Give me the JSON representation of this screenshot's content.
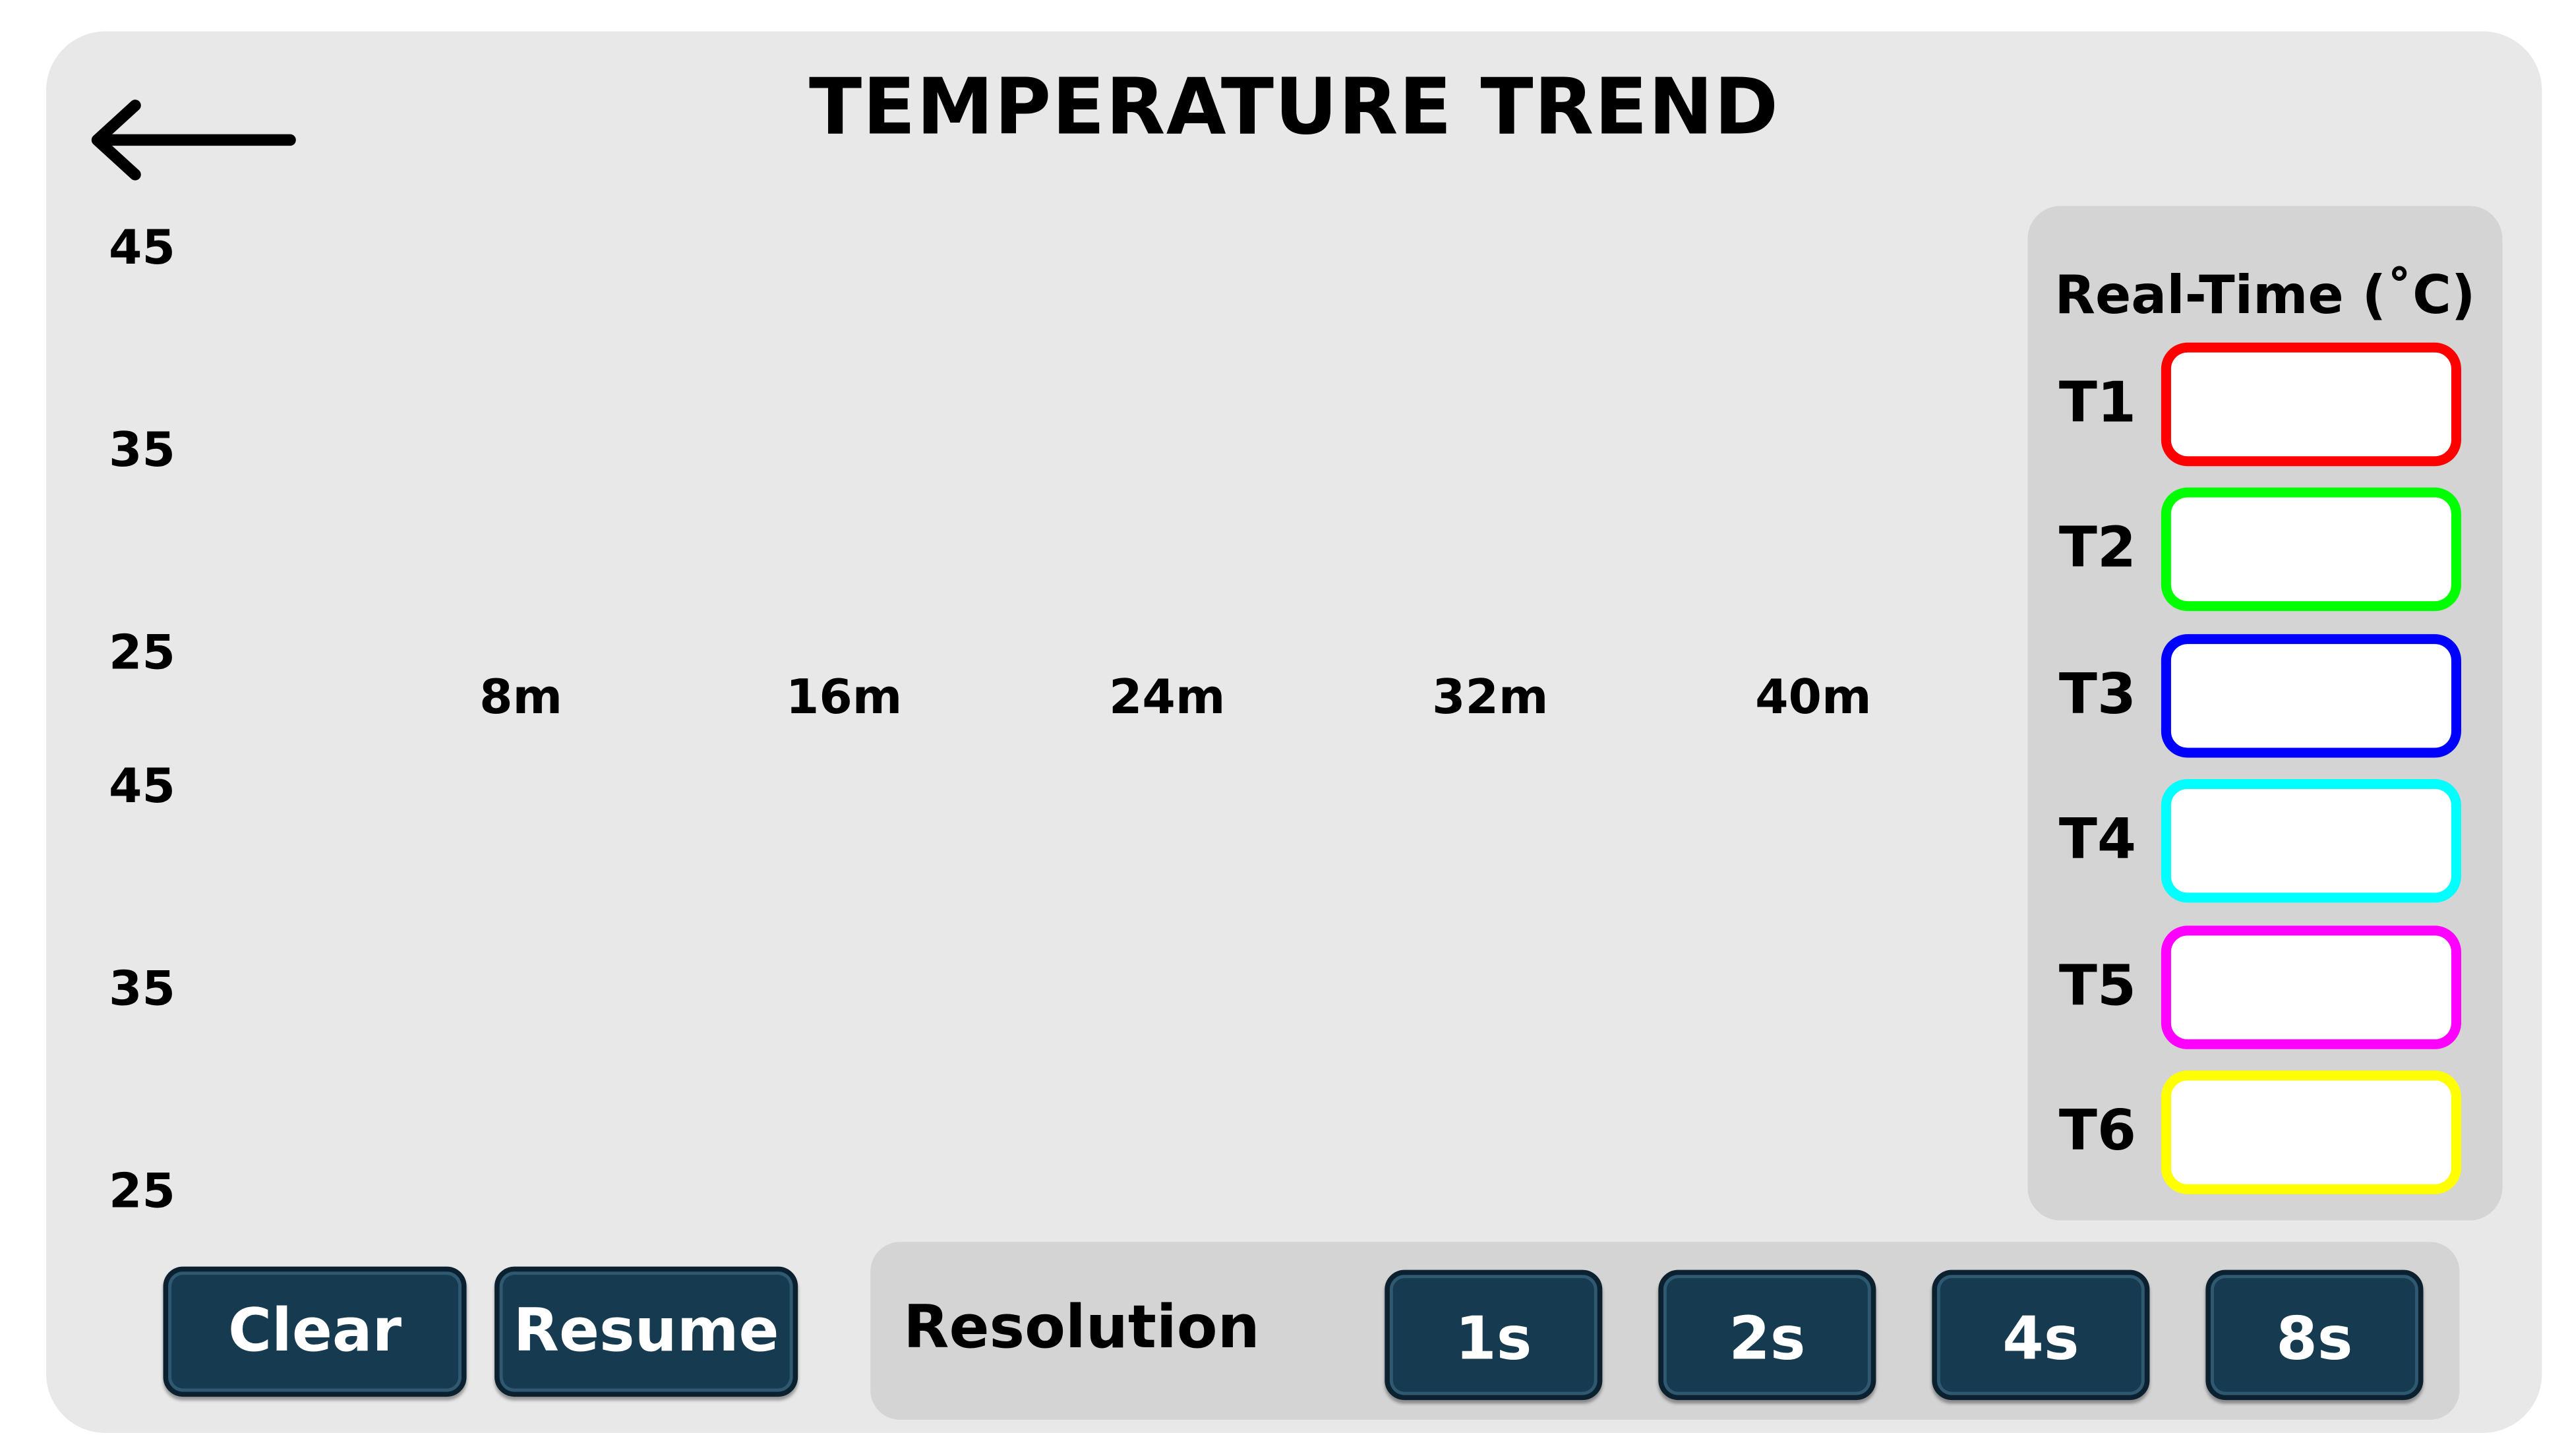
{
  "header": {
    "title": "TEMPERATURE TREND"
  },
  "chart_top": {
    "y_ticks": [
      "45",
      "35",
      "25"
    ],
    "x_ticks": [
      "8m",
      "16m",
      "24m",
      "32m",
      "40m"
    ]
  },
  "chart_bottom": {
    "y_ticks": [
      "45",
      "35",
      "25"
    ]
  },
  "realtime": {
    "title": "Real-Time (˚C)",
    "sensors": [
      {
        "label": "T1",
        "value": "",
        "color": "#ff0000"
      },
      {
        "label": "T2",
        "value": "",
        "color": "#00ff00"
      },
      {
        "label": "T3",
        "value": "",
        "color": "#0000ff"
      },
      {
        "label": "T4",
        "value": "",
        "color": "#00ffff"
      },
      {
        "label": "T5",
        "value": "",
        "color": "#ff00ff"
      },
      {
        "label": "T6",
        "value": "",
        "color": "#ffff00"
      }
    ]
  },
  "controls": {
    "clear_label": "Clear",
    "resume_label": "Resume"
  },
  "resolution": {
    "label": "Resolution",
    "options": [
      "1s",
      "2s",
      "4s",
      "8s"
    ]
  },
  "colors": {
    "button_bg": "#163a50",
    "panel_bg": "#e8e8e8",
    "box_bg": "#d4d4d4"
  },
  "icons": {
    "back": "left-arrow-icon"
  }
}
